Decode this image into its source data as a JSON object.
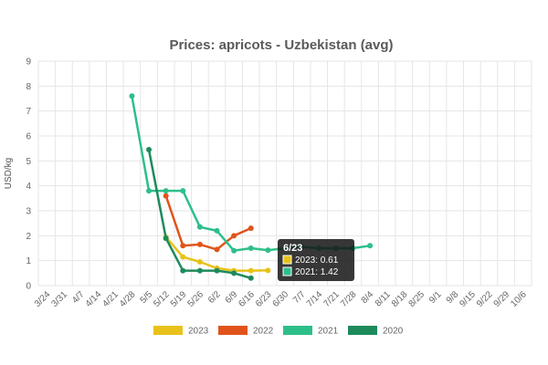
{
  "chart_data": {
    "type": "line",
    "title": "Prices: apricots - Uzbekistan (avg)",
    "ylabel": "USD/kg",
    "xlabel": "",
    "ylim": [
      0,
      9
    ],
    "yticks": [
      "0",
      "1",
      "2",
      "3",
      "4",
      "5",
      "6",
      "7",
      "8",
      "9"
    ],
    "categories": [
      "3/24",
      "3/31",
      "4/7",
      "4/14",
      "4/21",
      "4/28",
      "5/5",
      "5/12",
      "5/19",
      "5/26",
      "6/2",
      "6/9",
      "6/16",
      "6/23",
      "6/30",
      "7/7",
      "7/14",
      "7/21",
      "7/28",
      "8/4",
      "8/11",
      "8/18",
      "8/25",
      "9/1",
      "9/8",
      "9/15",
      "9/22",
      "9/29",
      "10/6"
    ],
    "grid": true,
    "legend_position": "bottom",
    "series": [
      {
        "name": "2023",
        "color": "#e8c21a",
        "points": [
          [
            "5/12",
            1.95
          ],
          [
            "5/19",
            1.15
          ],
          [
            "5/26",
            0.95
          ],
          [
            "6/2",
            0.7
          ],
          [
            "6/9",
            0.6
          ],
          [
            "6/16",
            0.6
          ],
          [
            "6/23",
            0.61
          ]
        ]
      },
      {
        "name": "2022",
        "color": "#e0541c",
        "points": [
          [
            "5/12",
            3.6
          ],
          [
            "5/19",
            1.6
          ],
          [
            "5/26",
            1.65
          ],
          [
            "6/2",
            1.45
          ],
          [
            "6/9",
            2.0
          ],
          [
            "6/16",
            2.3
          ]
        ]
      },
      {
        "name": "2021",
        "color": "#2dbf8a",
        "points": [
          [
            "4/28",
            7.6
          ],
          [
            "5/5",
            3.8
          ],
          [
            "5/12",
            3.8
          ],
          [
            "5/19",
            3.8
          ],
          [
            "5/26",
            2.35
          ],
          [
            "6/2",
            2.2
          ],
          [
            "6/9",
            1.4
          ],
          [
            "6/16",
            1.5
          ],
          [
            "6/23",
            1.42
          ],
          [
            "6/30",
            1.5
          ],
          [
            "7/7",
            1.55
          ],
          [
            "7/14",
            1.5
          ],
          [
            "7/21",
            1.5
          ],
          [
            "7/28",
            1.5
          ],
          [
            "8/4",
            1.6
          ]
        ]
      },
      {
        "name": "2020",
        "color": "#1e8a5c",
        "points": [
          [
            "5/5",
            5.45
          ],
          [
            "5/12",
            1.9
          ],
          [
            "5/19",
            0.6
          ],
          [
            "5/26",
            0.6
          ],
          [
            "6/2",
            0.6
          ],
          [
            "6/9",
            0.5
          ],
          [
            "6/16",
            0.3
          ]
        ]
      }
    ],
    "tooltip": {
      "title": "6/23",
      "lines": [
        {
          "text": "2023: 0.61",
          "color": "#e8c21a"
        },
        {
          "text": "2021: 1.42",
          "color": "#2dbf8a"
        }
      ]
    }
  }
}
